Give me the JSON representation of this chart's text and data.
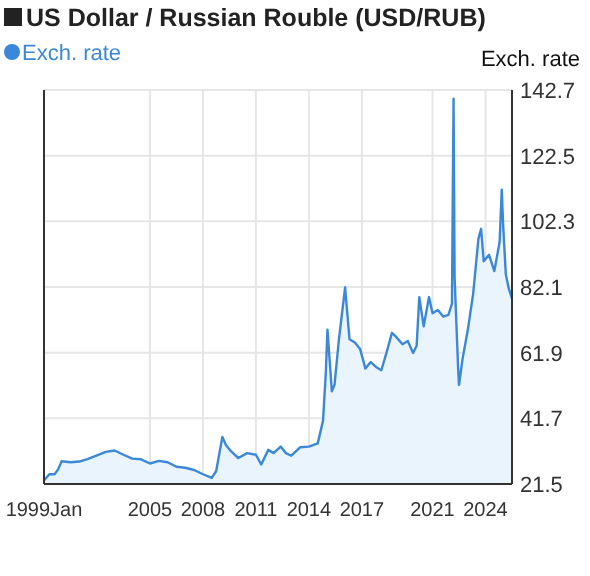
{
  "chart_data": {
    "type": "area",
    "title": "US Dollar / Russian Rouble (USD/RUB)",
    "ylabel": "Exch. rate",
    "xlim": [
      1999.0,
      2025.5
    ],
    "ylim": [
      21.5,
      142.7
    ],
    "xticks": [
      {
        "value": 1999,
        "label": "1999Jan"
      },
      2005,
      2008,
      2011,
      2014,
      2017,
      2021,
      2024
    ],
    "yticks": [
      21.5,
      41.7,
      61.9,
      82.1,
      102.3,
      122.5,
      142.7
    ],
    "grid": true,
    "legend": "top left",
    "series": [
      {
        "name": "Exch. rate",
        "color": "#3b87d8",
        "x": [
          1999.0,
          1999.3,
          1999.6,
          1999.8,
          2000.0,
          2000.5,
          2001.0,
          2001.5,
          2002.0,
          2002.5,
          2003.0,
          2003.5,
          2004.0,
          2004.5,
          2005.0,
          2005.5,
          2006.0,
          2006.5,
          2007.0,
          2007.5,
          2008.0,
          2008.5,
          2008.75,
          2009.1,
          2009.3,
          2009.6,
          2010.0,
          2010.5,
          2011.0,
          2011.3,
          2011.7,
          2012.0,
          2012.4,
          2012.7,
          2013.0,
          2013.5,
          2014.0,
          2014.5,
          2014.8,
          2014.96,
          2015.05,
          2015.3,
          2015.45,
          2015.7,
          2016.05,
          2016.3,
          2016.6,
          2016.9,
          2017.2,
          2017.5,
          2017.8,
          2018.1,
          2018.4,
          2018.7,
          2018.9,
          2019.3,
          2019.6,
          2019.9,
          2020.1,
          2020.25,
          2020.5,
          2020.8,
          2021.0,
          2021.3,
          2021.6,
          2021.9,
          2022.1,
          2022.19,
          2022.25,
          2022.45,
          2022.5,
          2022.7,
          2023.0,
          2023.3,
          2023.6,
          2023.75,
          2023.9,
          2024.2,
          2024.5,
          2024.8,
          2024.92,
          2025.0,
          2025.15,
          2025.3,
          2025.5
        ],
        "values": [
          22.6,
          24.5,
          24.5,
          26,
          28.5,
          28.2,
          28.4,
          29.2,
          30.3,
          31.4,
          31.8,
          30.5,
          29.3,
          29.1,
          27.8,
          28.6,
          28.2,
          26.8,
          26.5,
          25.8,
          24.5,
          23.4,
          25.5,
          36,
          33.5,
          31.5,
          29.5,
          31,
          30.5,
          27.5,
          32,
          31,
          33,
          31,
          30.2,
          32.8,
          33,
          34,
          41,
          56,
          69,
          50,
          52,
          66,
          82,
          66,
          65,
          63,
          57,
          59,
          57.5,
          56.5,
          62,
          68,
          67,
          64.5,
          65.5,
          61.8,
          64,
          79,
          70,
          79,
          74,
          75,
          73,
          73.5,
          77,
          140,
          85,
          57,
          52,
          60,
          69,
          80,
          97,
          100,
          90,
          92,
          87,
          96,
          112,
          101,
          86,
          82,
          78.5
        ]
      }
    ]
  }
}
